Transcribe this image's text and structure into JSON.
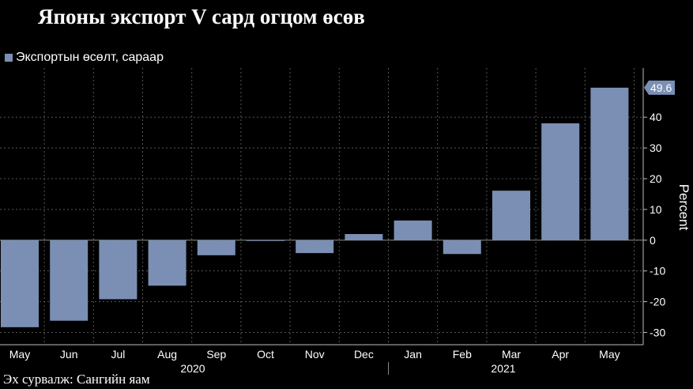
{
  "title": "Японы экспорт V сард огцом өсөв",
  "source": "Эх сурвалж: Сангийн яам",
  "colors": {
    "bar": "#7b8fb4",
    "background": "#000000",
    "grid": "#555555",
    "text": "#ffffff"
  },
  "chart_data": {
    "type": "bar",
    "categories": [
      "May",
      "Jun",
      "Jul",
      "Aug",
      "Sep",
      "Oct",
      "Nov",
      "Dec",
      "Jan",
      "Feb",
      "Mar",
      "Apr",
      "May"
    ],
    "year_labels": [
      "2020",
      "2021"
    ],
    "series": [
      {
        "name": "Экспортын өсөлт, сараар",
        "values": [
          -28.3,
          -26.2,
          -19.2,
          -14.8,
          -4.9,
          -0.2,
          -4.2,
          2.0,
          6.4,
          -4.5,
          16.1,
          38.0,
          49.6
        ]
      }
    ],
    "ylabel": "Percent",
    "ylim": [
      -34,
      56
    ],
    "yticks": [
      -30,
      -20,
      -10,
      0,
      10,
      20,
      30,
      40
    ],
    "ytick_labels": [
      "-30",
      "-20",
      "-10",
      "0",
      "10",
      "20",
      "30",
      "40"
    ],
    "last_value_label": "49.6",
    "grid": true,
    "legend_position": "top-left"
  }
}
